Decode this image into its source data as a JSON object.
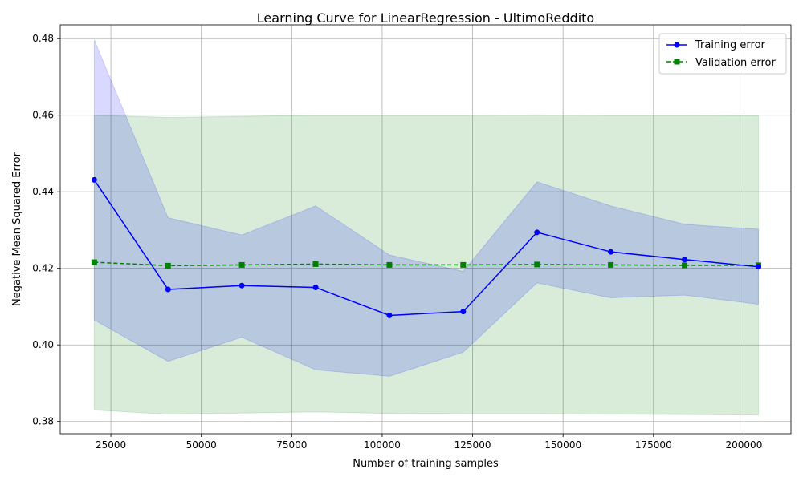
{
  "chart_data": {
    "type": "line",
    "title": "Learning Curve for LinearRegression - UltimoReddito",
    "xlabel": "Number of training samples",
    "ylabel": "Negative Mean Squared Error",
    "xlim": [
      11000,
      213000
    ],
    "ylim": [
      0.3768,
      0.4836
    ],
    "xticks": [
      25000,
      50000,
      75000,
      100000,
      125000,
      150000,
      175000,
      200000
    ],
    "yticks": [
      0.38,
      0.4,
      0.42,
      0.44,
      0.46,
      0.48
    ],
    "ytick_labels": [
      "0.38",
      "0.40",
      "0.42",
      "0.44",
      "0.46",
      "0.48"
    ],
    "grid": true,
    "legend_position": "top-right",
    "x": [
      20400,
      40800,
      61200,
      81600,
      102000,
      122400,
      142800,
      163200,
      183600,
      204000
    ],
    "series": [
      {
        "name": "Training error",
        "color": "#0000ff",
        "marker": "circle",
        "line_style": "solid",
        "values": [
          0.4431,
          0.4145,
          0.4155,
          0.415,
          0.4077,
          0.4087,
          0.4294,
          0.4243,
          0.4223,
          0.4204
        ],
        "band_upper": [
          0.4797,
          0.4332,
          0.4287,
          0.4363,
          0.4235,
          0.4192,
          0.4426,
          0.4363,
          0.4315,
          0.4302
        ],
        "band_lower": [
          0.4065,
          0.3957,
          0.402,
          0.3935,
          0.3918,
          0.3981,
          0.4162,
          0.4123,
          0.413,
          0.4106
        ],
        "band_color": "#0000ff",
        "band_opacity": 0.15
      },
      {
        "name": "Validation error",
        "color": "#008000",
        "marker": "square",
        "line_style": "dashed",
        "values": [
          0.4216,
          0.4207,
          0.4209,
          0.4211,
          0.4209,
          0.4209,
          0.421,
          0.4209,
          0.4208,
          0.4208
        ],
        "band_upper": [
          0.46,
          0.4594,
          0.4597,
          0.46,
          0.46,
          0.46,
          0.4601,
          0.46,
          0.46,
          0.4599
        ],
        "band_lower": [
          0.383,
          0.3819,
          0.3822,
          0.3825,
          0.3821,
          0.382,
          0.382,
          0.3819,
          0.3818,
          0.3817
        ],
        "band_color": "#008000",
        "band_opacity": 0.15
      }
    ]
  }
}
